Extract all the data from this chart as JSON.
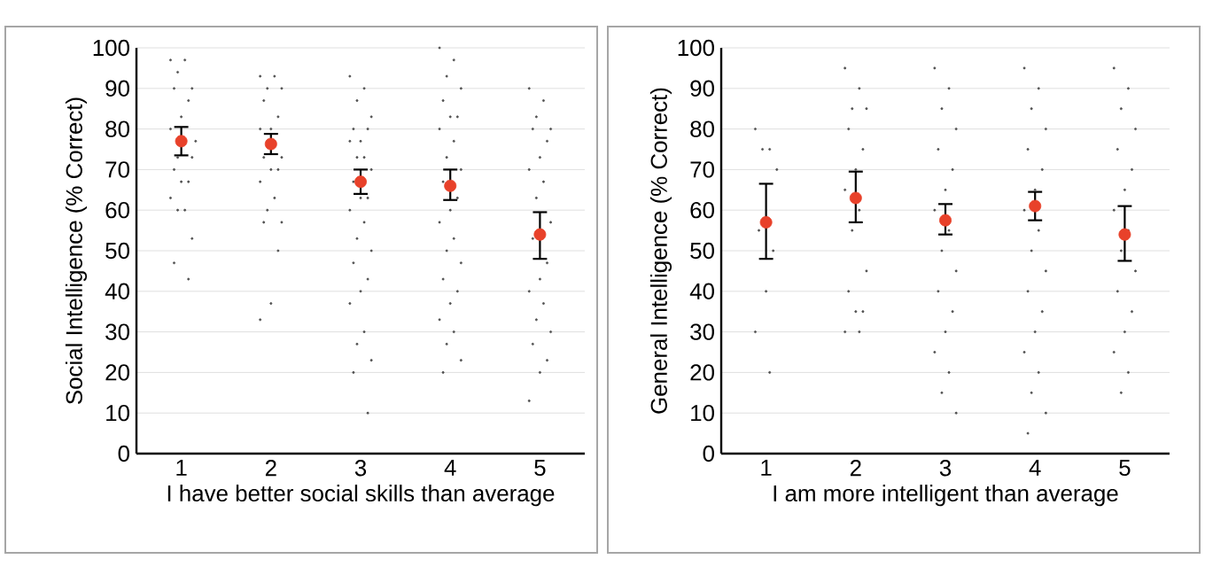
{
  "chart_data": [
    {
      "type": "scatter",
      "xlabel": "I have better social skills than average",
      "ylabel": "Social Intelligence (% Correct)",
      "xlim": [
        0.5,
        5.5
      ],
      "ylim": [
        0,
        100
      ],
      "xticks": [
        1,
        2,
        3,
        4,
        5
      ],
      "yticks": [
        0,
        10,
        20,
        30,
        40,
        50,
        60,
        70,
        80,
        90,
        100
      ],
      "grid": "y",
      "series": [
        {
          "marker": "circle",
          "color": "#505050",
          "x": [
            0.88,
            1.04,
            0.96,
            1.12,
            0.92,
            1.08,
            1,
            0.88,
            1.16,
            0.96,
            1.12,
            0.92,
            1.08,
            1,
            0.88,
            1.04,
            0.96,
            1.12,
            0.92,
            1.08,
            1.88,
            2.04,
            1.96,
            2.12,
            1.92,
            2.08,
            2,
            1.88,
            2.04,
            1.96,
            2.12,
            1.92,
            2.08,
            2,
            1.88,
            2.04,
            1.96,
            2.12,
            1.92,
            2.08,
            2,
            1.88,
            2.88,
            3.04,
            2.96,
            3.12,
            2.92,
            3.08,
            3,
            2.88,
            3.04,
            2.96,
            3.12,
            2.92,
            3.08,
            3,
            2.88,
            3.04,
            2.96,
            3.12,
            2.92,
            3.08,
            3,
            2.88,
            3.04,
            2.96,
            3.12,
            2.92,
            3.08,
            3.88,
            4.04,
            3.96,
            4.12,
            3.92,
            4.08,
            4,
            3.88,
            4.04,
            3.96,
            4.12,
            3.92,
            4.08,
            4,
            3.88,
            4.04,
            3.96,
            4.12,
            3.92,
            4.08,
            4,
            3.88,
            4.04,
            3.96,
            4.12,
            3.92,
            4.88,
            5.04,
            4.96,
            5.12,
            4.92,
            5.08,
            5,
            4.88,
            5.04,
            4.96,
            5.12,
            4.92,
            5.08,
            5,
            4.88,
            5.04,
            4.96,
            5.12,
            4.92,
            5.08,
            5,
            4.88
          ],
          "values": [
            97,
            97,
            94,
            90,
            90,
            87,
            83,
            80,
            77,
            73,
            73,
            70,
            67,
            67,
            63,
            60,
            60,
            53,
            47,
            43,
            93,
            93,
            90,
            90,
            87,
            83,
            80,
            80,
            77,
            77,
            73,
            73,
            70,
            70,
            67,
            63,
            60,
            57,
            57,
            50,
            37,
            33,
            93,
            90,
            87,
            83,
            80,
            80,
            77,
            77,
            73,
            73,
            70,
            67,
            63,
            63,
            60,
            57,
            53,
            50,
            47,
            43,
            40,
            37,
            30,
            27,
            23,
            20,
            10,
            100,
            97,
            93,
            90,
            87,
            83,
            83,
            80,
            77,
            73,
            70,
            67,
            63,
            60,
            57,
            53,
            50,
            47,
            43,
            40,
            37,
            33,
            30,
            27,
            23,
            20,
            90,
            87,
            83,
            80,
            80,
            77,
            73,
            70,
            67,
            63,
            57,
            53,
            47,
            43,
            40,
            37,
            33,
            30,
            27,
            23,
            20,
            13
          ]
        },
        {
          "marker": "circle",
          "color": "#e8412a",
          "x": [
            1,
            2,
            3,
            4,
            5
          ],
          "values": [
            77,
            76.3,
            67,
            66,
            54
          ],
          "errors": [
            [
              73.5,
              80.5
            ],
            [
              73.8,
              78.8
            ],
            [
              64,
              70
            ],
            [
              62.5,
              70
            ],
            [
              48,
              59.5
            ]
          ]
        }
      ]
    },
    {
      "type": "scatter",
      "xlabel": "I am more intelligent than average",
      "ylabel": "General Intelligence (% Correct)",
      "xlim": [
        0.5,
        5.5
      ],
      "ylim": [
        0,
        100
      ],
      "xticks": [
        1,
        2,
        3,
        4,
        5
      ],
      "yticks": [
        0,
        10,
        20,
        30,
        40,
        50,
        60,
        70,
        80,
        90,
        100
      ],
      "grid": "y",
      "series": [
        {
          "marker": "circle",
          "color": "#505050",
          "x": [
            0.88,
            1.04,
            0.96,
            1.12,
            0.92,
            1.08,
            1,
            0.88,
            1.04,
            1.88,
            2.04,
            1.96,
            2.12,
            1.92,
            2.08,
            2,
            1.88,
            2.04,
            1.96,
            2.12,
            1.92,
            2.08,
            2,
            1.88,
            2.04,
            2.88,
            3.04,
            2.96,
            3.12,
            2.92,
            3.08,
            3,
            2.88,
            3.04,
            2.96,
            3.12,
            2.92,
            3.08,
            3,
            2.88,
            3.04,
            2.96,
            3.12,
            3.88,
            4.04,
            3.96,
            4.12,
            3.92,
            4.08,
            4,
            3.88,
            4.04,
            3.96,
            4.12,
            3.92,
            4.08,
            4,
            3.88,
            4.04,
            3.96,
            4.12,
            3.92,
            4.88,
            5.04,
            4.96,
            5.12,
            4.92,
            5.08,
            5,
            4.88,
            5.04,
            4.96,
            5.12,
            4.92,
            5.08,
            5,
            4.88,
            5.04,
            4.96
          ],
          "values": [
            80,
            75,
            75,
            70,
            55,
            50,
            40,
            30,
            20,
            95,
            90,
            85,
            85,
            80,
            75,
            70,
            65,
            60,
            55,
            45,
            40,
            35,
            35,
            30,
            30,
            95,
            90,
            85,
            80,
            75,
            70,
            65,
            60,
            55,
            50,
            45,
            40,
            35,
            30,
            25,
            20,
            15,
            10,
            95,
            90,
            85,
            80,
            75,
            70,
            65,
            60,
            55,
            50,
            45,
            40,
            35,
            30,
            25,
            20,
            15,
            10,
            5,
            95,
            90,
            85,
            80,
            75,
            70,
            65,
            60,
            55,
            50,
            45,
            40,
            35,
            30,
            25,
            20,
            15
          ]
        },
        {
          "marker": "circle",
          "color": "#e8412a",
          "x": [
            1,
            2,
            3,
            4,
            5
          ],
          "values": [
            57,
            63,
            57.5,
            61,
            54
          ],
          "errors": [
            [
              48,
              66.5
            ],
            [
              57,
              69.5
            ],
            [
              54,
              61.5
            ],
            [
              57.5,
              64.5
            ],
            [
              47.5,
              61
            ]
          ]
        }
      ]
    }
  ]
}
